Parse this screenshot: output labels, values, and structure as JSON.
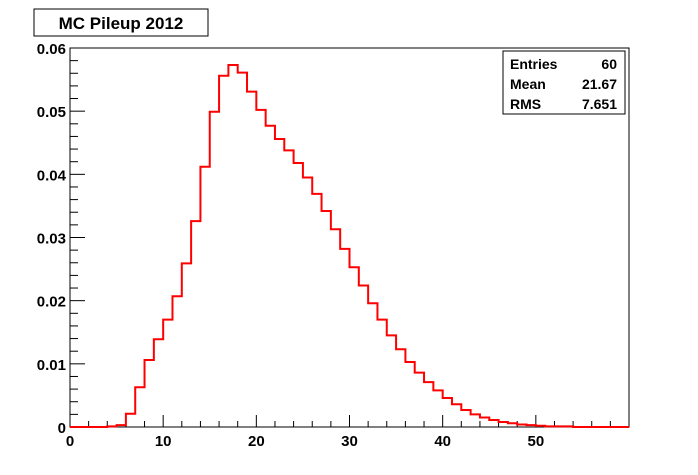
{
  "chart_data": {
    "type": "histogram",
    "title": "MC Pileup 2012",
    "xlabel": "",
    "ylabel": "",
    "xlim": [
      0,
      60
    ],
    "ylim": [
      0,
      0.06
    ],
    "x_ticks": [
      "0",
      "10",
      "20",
      "30",
      "40",
      "50"
    ],
    "y_ticks": [
      "0",
      "0.01",
      "0.02",
      "0.03",
      "0.04",
      "0.05",
      "0.06"
    ],
    "bin_edges_start": 0,
    "bin_width": 1,
    "series": [
      {
        "color": "#ff0000",
        "values": [
          0,
          0,
          0,
          0,
          0.0001,
          0.0003,
          0.0021,
          0.0063,
          0.0106,
          0.0139,
          0.017,
          0.0207,
          0.0259,
          0.0326,
          0.0412,
          0.0499,
          0.0556,
          0.0573,
          0.0561,
          0.0531,
          0.0502,
          0.0477,
          0.0456,
          0.0438,
          0.0418,
          0.0395,
          0.0369,
          0.0342,
          0.0313,
          0.0282,
          0.0253,
          0.0224,
          0.0196,
          0.017,
          0.0145,
          0.0123,
          0.0103,
          0.0086,
          0.0071,
          0.0058,
          0.0046,
          0.0036,
          0.0027,
          0.002,
          0.0015,
          0.0011,
          0.0008,
          0.0006,
          0.0004,
          0.0003,
          0.0002,
          0.0001,
          0.0001,
          0.0001,
          0,
          0,
          0,
          0,
          0,
          0
        ]
      }
    ],
    "stats": {
      "entries_label": "Entries",
      "entries_value": "60",
      "mean_label": "Mean",
      "mean_value": "21.67",
      "rms_label": "RMS",
      "rms_value": "7.651"
    },
    "grid": false,
    "legend": "top-right"
  }
}
